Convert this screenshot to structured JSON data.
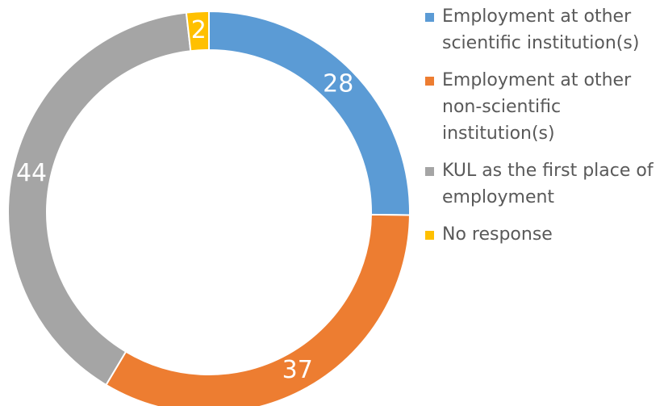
{
  "chart_data": {
    "type": "donut",
    "categories": [
      "Employment at other scientific institution(s)",
      "Employment at other non-scientific institution(s)",
      "KUL as the first place of employment",
      "No response"
    ],
    "values": [
      28,
      37,
      44,
      2
    ],
    "colors": [
      "#5b9bd5",
      "#ed7d31",
      "#a5a5a5",
      "#ffc000"
    ],
    "legend": "right"
  }
}
